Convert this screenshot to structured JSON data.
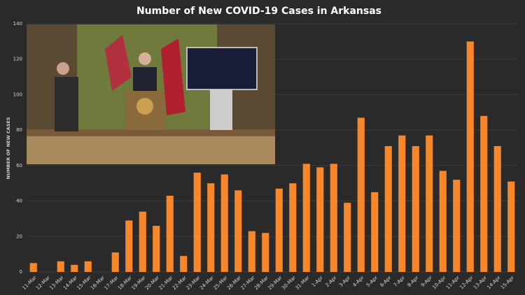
{
  "chart_data": {
    "type": "bar",
    "title": "Number of New COVID-19 Cases in Arkansas",
    "y_label": "NUMBER OF NEW CASES",
    "categories": [
      "11-Mar",
      "12-Mar",
      "13-Mar",
      "14-Mar",
      "15-Mar",
      "16-Mar",
      "17-Mar",
      "18-Mar",
      "19-Mar",
      "20-Mar",
      "21-Mar",
      "22-Mar",
      "23-Mar",
      "24-Mar",
      "25-Mar",
      "26-Mar",
      "27-Mar",
      "28-Mar",
      "29-Mar",
      "30-Mar",
      "31-Mar",
      "1-Apr",
      "2-Apr",
      "3-Apr",
      "4-Apr",
      "5-Apr",
      "6-Apr",
      "7-Apr",
      "8-Apr",
      "9-Apr",
      "10-Apr",
      "11-Apr",
      "12-Apr",
      "13-Apr",
      "14-Apr",
      "15-Apr"
    ],
    "values": [
      5,
      0,
      6,
      4,
      6,
      0,
      11,
      29,
      34,
      26,
      43,
      9,
      56,
      50,
      55,
      46,
      23,
      22,
      47,
      50,
      61,
      59,
      61,
      39,
      87,
      45,
      71,
      77,
      71,
      77,
      57,
      52,
      130,
      88,
      71,
      51
    ],
    "color": "#f7872a",
    "ylim": [
      0,
      140
    ],
    "yticks": [
      0,
      20,
      40,
      60,
      80,
      100,
      120,
      140
    ],
    "grid": true
  }
}
